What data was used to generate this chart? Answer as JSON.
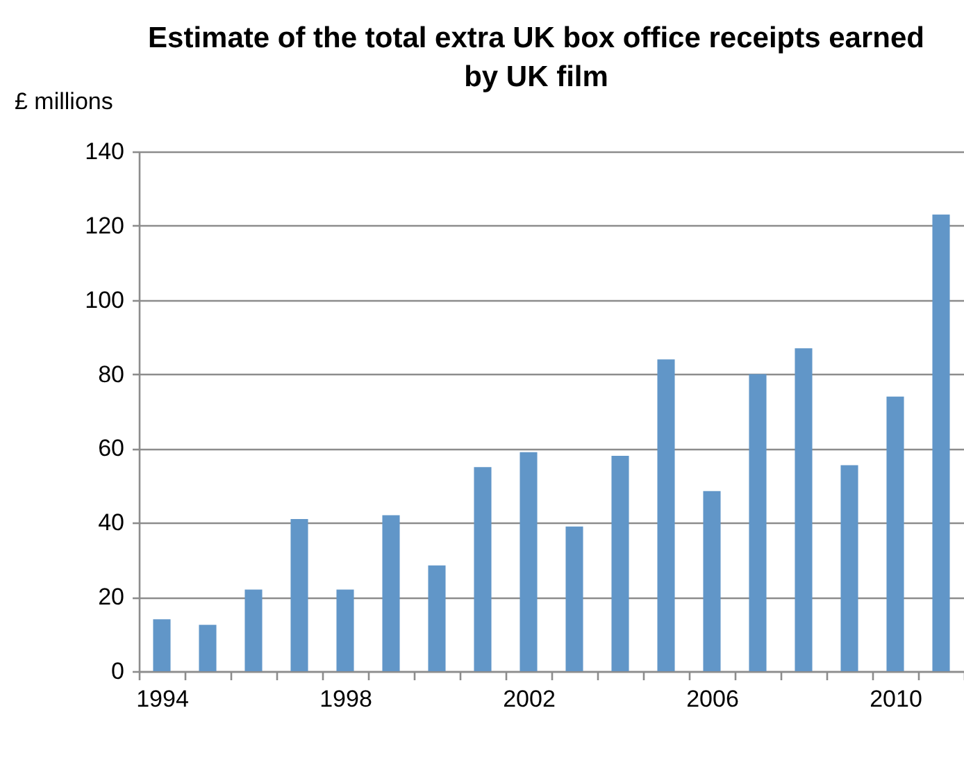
{
  "chart_data": {
    "type": "bar",
    "title": "Estimate of the total extra UK box office receipts earned by UK film",
    "ylabel": "£ millions",
    "categories": [
      "1994",
      null,
      null,
      null,
      "1998",
      null,
      null,
      null,
      "2002",
      null,
      null,
      null,
      "2006",
      null,
      null,
      null,
      "2010",
      null
    ],
    "values": [
      14,
      12.5,
      22,
      41,
      22,
      42,
      28.5,
      55,
      59,
      39,
      58,
      84,
      48.5,
      80,
      87,
      55.5,
      74,
      123
    ],
    "color": "#6196c8",
    "ylim": [
      0,
      140
    ],
    "yticks": [
      0,
      20,
      40,
      60,
      80,
      100,
      120,
      140
    ],
    "grid": "y"
  }
}
